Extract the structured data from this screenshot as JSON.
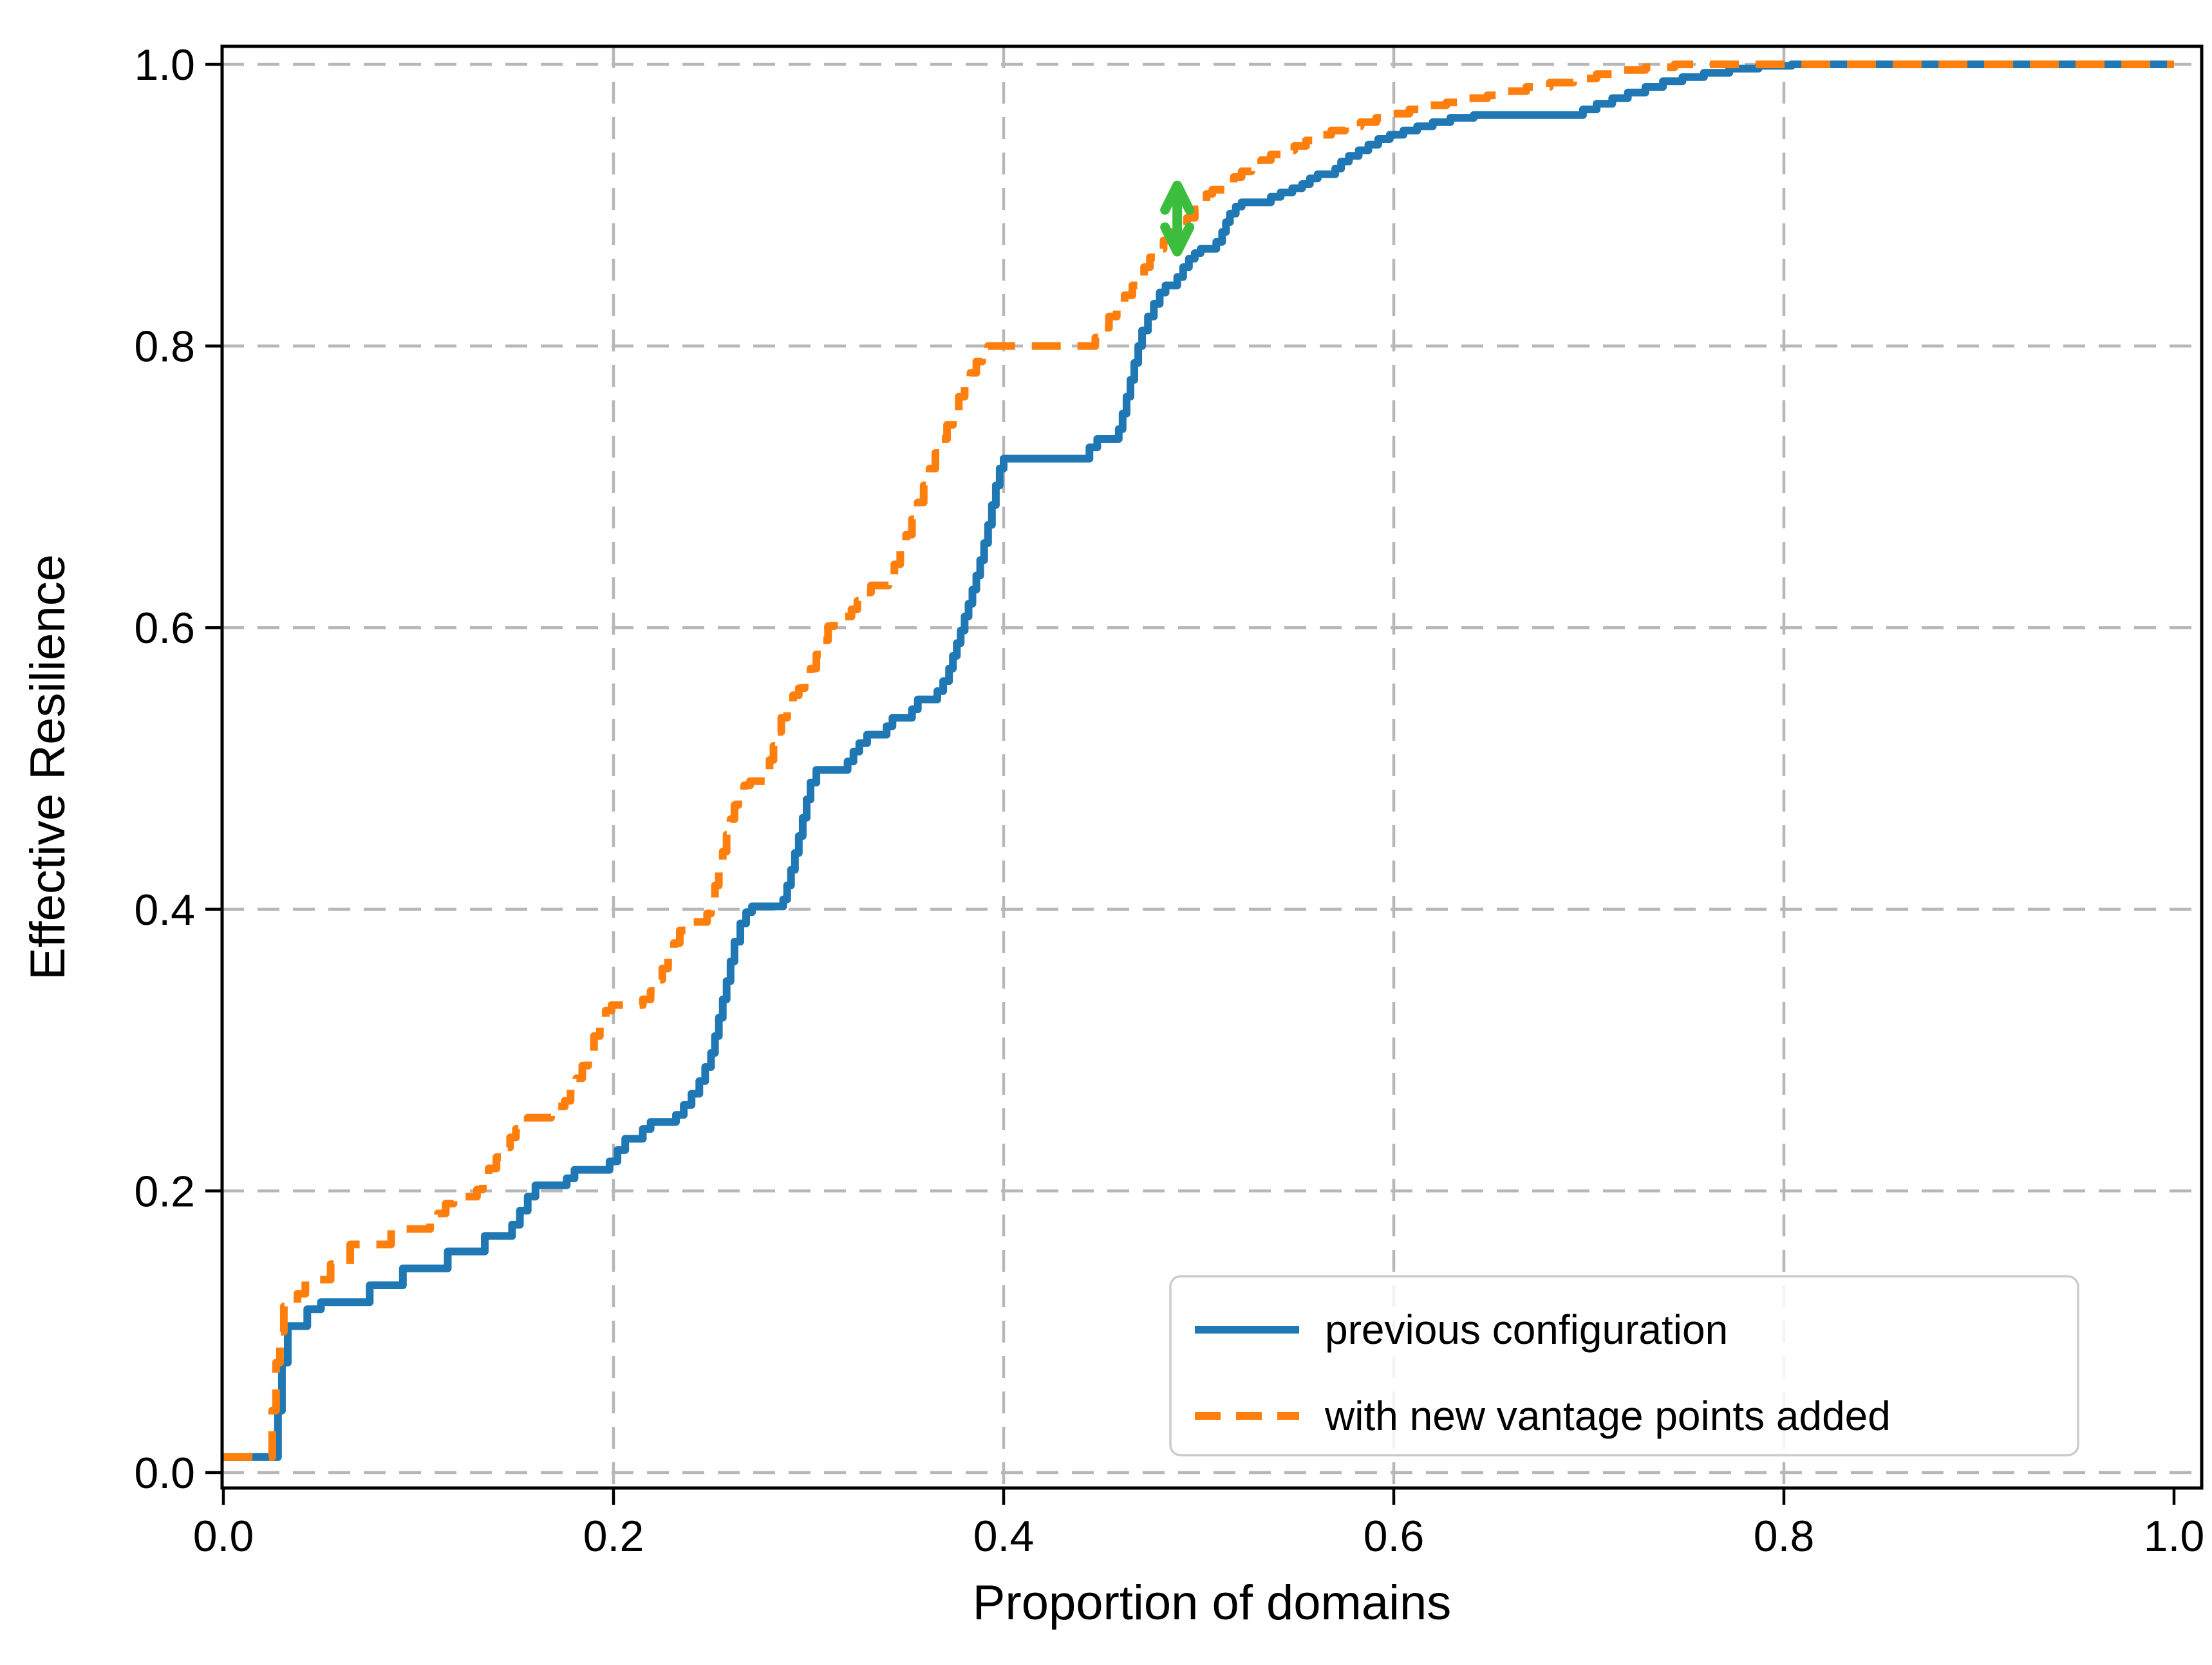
{
  "chart_data": {
    "type": "line",
    "title": "",
    "xlabel": "Proportion of domains",
    "ylabel": "Effective Resilience",
    "xlim": [
      0.0,
      1.0
    ],
    "ylim": [
      0.0,
      1.0
    ],
    "grid": true,
    "grid_style": "dashed",
    "grid_color": "#b7b7b7",
    "xticks": {
      "values": [
        0.0,
        0.2,
        0.4,
        0.6,
        0.8,
        1.0
      ],
      "labels": [
        "0.0",
        "0.2",
        "0.4",
        "0.6",
        "0.8",
        "1.0"
      ]
    },
    "yticks": {
      "values": [
        0.0,
        0.2,
        0.4,
        0.6,
        0.8,
        1.0
      ],
      "labels": [
        "0.0",
        "0.2",
        "0.4",
        "0.6",
        "0.8",
        "1.0"
      ]
    },
    "legend": {
      "position": "lower right",
      "items": [
        {
          "label": "previous configuration",
          "color": "#1f77b4",
          "dash": "solid"
        },
        {
          "label": "with new vantage points added",
          "color": "#ff7f0e",
          "dash": "dashed"
        }
      ]
    },
    "annotations": [
      {
        "type": "double-arrow",
        "color": "#3dbd3d",
        "x": 0.489,
        "y_from": 0.867,
        "y_to": 0.914
      }
    ],
    "series": [
      {
        "name": "previous configuration",
        "color": "#1f77b4",
        "style": "solid",
        "step": "post",
        "points": [
          [
            0,
            0.011
          ],
          [
            0.028,
            0.044
          ],
          [
            0.03,
            0.078
          ],
          [
            0.033,
            0.104
          ],
          [
            0.043,
            0.116
          ],
          [
            0.05,
            0.121
          ],
          [
            0.075,
            0.133
          ],
          [
            0.092,
            0.145
          ],
          [
            0.115,
            0.157
          ],
          [
            0.134,
            0.168
          ],
          [
            0.148,
            0.176
          ],
          [
            0.152,
            0.186
          ],
          [
            0.156,
            0.196
          ],
          [
            0.16,
            0.204
          ],
          [
            0.176,
            0.209
          ],
          [
            0.18,
            0.215
          ],
          [
            0.198,
            0.221
          ],
          [
            0.202,
            0.229
          ],
          [
            0.206,
            0.237
          ],
          [
            0.215,
            0.244
          ],
          [
            0.219,
            0.249
          ],
          [
            0.232,
            0.254
          ],
          [
            0.236,
            0.261
          ],
          [
            0.24,
            0.269
          ],
          [
            0.244,
            0.278
          ],
          [
            0.247,
            0.288
          ],
          [
            0.25,
            0.298
          ],
          [
            0.252,
            0.31
          ],
          [
            0.254,
            0.323
          ],
          [
            0.256,
            0.336
          ],
          [
            0.258,
            0.349
          ],
          [
            0.26,
            0.363
          ],
          [
            0.262,
            0.377
          ],
          [
            0.265,
            0.39
          ],
          [
            0.268,
            0.398
          ],
          [
            0.271,
            0.402
          ],
          [
            0.287,
            0.407
          ],
          [
            0.289,
            0.417
          ],
          [
            0.291,
            0.428
          ],
          [
            0.293,
            0.44
          ],
          [
            0.295,
            0.452
          ],
          [
            0.297,
            0.465
          ],
          [
            0.299,
            0.478
          ],
          [
            0.301,
            0.49
          ],
          [
            0.304,
            0.499
          ],
          [
            0.32,
            0.505
          ],
          [
            0.323,
            0.512
          ],
          [
            0.326,
            0.518
          ],
          [
            0.33,
            0.524
          ],
          [
            0.34,
            0.53
          ],
          [
            0.343,
            0.536
          ],
          [
            0.353,
            0.542
          ],
          [
            0.356,
            0.549
          ],
          [
            0.366,
            0.555
          ],
          [
            0.369,
            0.562
          ],
          [
            0.372,
            0.571
          ],
          [
            0.374,
            0.58
          ],
          [
            0.376,
            0.589
          ],
          [
            0.378,
            0.598
          ],
          [
            0.38,
            0.608
          ],
          [
            0.382,
            0.617
          ],
          [
            0.384,
            0.627
          ],
          [
            0.386,
            0.637
          ],
          [
            0.388,
            0.648
          ],
          [
            0.39,
            0.66
          ],
          [
            0.392,
            0.673
          ],
          [
            0.394,
            0.687
          ],
          [
            0.396,
            0.701
          ],
          [
            0.398,
            0.713
          ],
          [
            0.4,
            0.72
          ],
          [
            0.444,
            0.728
          ],
          [
            0.448,
            0.734
          ],
          [
            0.459,
            0.741
          ],
          [
            0.461,
            0.752
          ],
          [
            0.463,
            0.764
          ],
          [
            0.465,
            0.776
          ],
          [
            0.467,
            0.788
          ],
          [
            0.469,
            0.8
          ],
          [
            0.471,
            0.811
          ],
          [
            0.474,
            0.821
          ],
          [
            0.477,
            0.83
          ],
          [
            0.48,
            0.838
          ],
          [
            0.483,
            0.843
          ],
          [
            0.489,
            0.849
          ],
          [
            0.492,
            0.856
          ],
          [
            0.495,
            0.862
          ],
          [
            0.498,
            0.866
          ],
          [
            0.501,
            0.869
          ],
          [
            0.509,
            0.874
          ],
          [
            0.512,
            0.881
          ],
          [
            0.514,
            0.888
          ],
          [
            0.516,
            0.894
          ],
          [
            0.519,
            0.899
          ],
          [
            0.522,
            0.902
          ],
          [
            0.537,
            0.906
          ],
          [
            0.542,
            0.909
          ],
          [
            0.548,
            0.912
          ],
          [
            0.553,
            0.915
          ],
          [
            0.557,
            0.919
          ],
          [
            0.561,
            0.922
          ],
          [
            0.57,
            0.926
          ],
          [
            0.573,
            0.931
          ],
          [
            0.577,
            0.935
          ],
          [
            0.582,
            0.939
          ],
          [
            0.587,
            0.943
          ],
          [
            0.592,
            0.947
          ],
          [
            0.598,
            0.95
          ],
          [
            0.605,
            0.953
          ],
          [
            0.612,
            0.956
          ],
          [
            0.62,
            0.959
          ],
          [
            0.629,
            0.962
          ],
          [
            0.641,
            0.964
          ],
          [
            0.697,
            0.968
          ],
          [
            0.704,
            0.972
          ],
          [
            0.712,
            0.976
          ],
          [
            0.72,
            0.98
          ],
          [
            0.729,
            0.984
          ],
          [
            0.738,
            0.988
          ],
          [
            0.748,
            0.991
          ],
          [
            0.759,
            0.994
          ],
          [
            0.772,
            0.997
          ],
          [
            0.787,
            0.999
          ],
          [
            0.804,
            1
          ],
          [
            1,
            1
          ]
        ]
      },
      {
        "name": "with new vantage points added",
        "color": "#ff7f0e",
        "style": "dashed",
        "step": "post",
        "points": [
          [
            0,
            0.011
          ],
          [
            0.025,
            0.044
          ],
          [
            0.027,
            0.078
          ],
          [
            0.029,
            0.1
          ],
          [
            0.031,
            0.118
          ],
          [
            0.038,
            0.127
          ],
          [
            0.042,
            0.137
          ],
          [
            0.055,
            0.148
          ],
          [
            0.065,
            0.162
          ],
          [
            0.086,
            0.173
          ],
          [
            0.106,
            0.178
          ],
          [
            0.11,
            0.184
          ],
          [
            0.114,
            0.191
          ],
          [
            0.118,
            0.196
          ],
          [
            0.13,
            0.201
          ],
          [
            0.133,
            0.209
          ],
          [
            0.136,
            0.216
          ],
          [
            0.14,
            0.224
          ],
          [
            0.143,
            0.231
          ],
          [
            0.147,
            0.238
          ],
          [
            0.15,
            0.244
          ],
          [
            0.153,
            0.249
          ],
          [
            0.156,
            0.252
          ],
          [
            0.168,
            0.256
          ],
          [
            0.171,
            0.26
          ],
          [
            0.175,
            0.264
          ],
          [
            0.178,
            0.272
          ],
          [
            0.181,
            0.28
          ],
          [
            0.184,
            0.289
          ],
          [
            0.187,
            0.299
          ],
          [
            0.19,
            0.31
          ],
          [
            0.193,
            0.32
          ],
          [
            0.196,
            0.328
          ],
          [
            0.199,
            0.332
          ],
          [
            0.215,
            0.336
          ],
          [
            0.219,
            0.342
          ],
          [
            0.222,
            0.35
          ],
          [
            0.225,
            0.358
          ],
          [
            0.228,
            0.367
          ],
          [
            0.231,
            0.376
          ],
          [
            0.234,
            0.385
          ],
          [
            0.237,
            0.391
          ],
          [
            0.248,
            0.397
          ],
          [
            0.25,
            0.406
          ],
          [
            0.252,
            0.417
          ],
          [
            0.254,
            0.429
          ],
          [
            0.256,
            0.441
          ],
          [
            0.258,
            0.453
          ],
          [
            0.26,
            0.464
          ],
          [
            0.262,
            0.474
          ],
          [
            0.264,
            0.482
          ],
          [
            0.267,
            0.488
          ],
          [
            0.27,
            0.491
          ],
          [
            0.278,
            0.496
          ],
          [
            0.28,
            0.506
          ],
          [
            0.282,
            0.516
          ],
          [
            0.284,
            0.526
          ],
          [
            0.286,
            0.536
          ],
          [
            0.289,
            0.545
          ],
          [
            0.292,
            0.552
          ],
          [
            0.295,
            0.557
          ],
          [
            0.298,
            0.563
          ],
          [
            0.301,
            0.571
          ],
          [
            0.304,
            0.581
          ],
          [
            0.307,
            0.591
          ],
          [
            0.31,
            0.601
          ],
          [
            0.313,
            0.608
          ],
          [
            0.322,
            0.613
          ],
          [
            0.325,
            0.619
          ],
          [
            0.328,
            0.625
          ],
          [
            0.332,
            0.63
          ],
          [
            0.341,
            0.636
          ],
          [
            0.344,
            0.645
          ],
          [
            0.347,
            0.655
          ],
          [
            0.35,
            0.666
          ],
          [
            0.353,
            0.677
          ],
          [
            0.356,
            0.689
          ],
          [
            0.359,
            0.701
          ],
          [
            0.362,
            0.713
          ],
          [
            0.365,
            0.724
          ],
          [
            0.368,
            0.734
          ],
          [
            0.371,
            0.744
          ],
          [
            0.374,
            0.754
          ],
          [
            0.377,
            0.764
          ],
          [
            0.38,
            0.773
          ],
          [
            0.383,
            0.781
          ],
          [
            0.386,
            0.789
          ],
          [
            0.389,
            0.796
          ],
          [
            0.392,
            0.8
          ],
          [
            0.447,
            0.806
          ],
          [
            0.45,
            0.813
          ],
          [
            0.454,
            0.821
          ],
          [
            0.458,
            0.829
          ],
          [
            0.462,
            0.836
          ],
          [
            0.466,
            0.843
          ],
          [
            0.469,
            0.849
          ],
          [
            0.472,
            0.856
          ],
          [
            0.475,
            0.863
          ],
          [
            0.479,
            0.869
          ],
          [
            0.482,
            0.875
          ],
          [
            0.486,
            0.881
          ],
          [
            0.49,
            0.886
          ],
          [
            0.494,
            0.891
          ],
          [
            0.498,
            0.897
          ],
          [
            0.501,
            0.903
          ],
          [
            0.504,
            0.908
          ],
          [
            0.507,
            0.911
          ],
          [
            0.515,
            0.915
          ],
          [
            0.518,
            0.92
          ],
          [
            0.522,
            0.924
          ],
          [
            0.527,
            0.928
          ],
          [
            0.532,
            0.932
          ],
          [
            0.537,
            0.936
          ],
          [
            0.543,
            0.939
          ],
          [
            0.549,
            0.942
          ],
          [
            0.555,
            0.946
          ],
          [
            0.561,
            0.95
          ],
          [
            0.568,
            0.953
          ],
          [
            0.575,
            0.956
          ],
          [
            0.583,
            0.959
          ],
          [
            0.591,
            0.962
          ],
          [
            0.599,
            0.965
          ],
          [
            0.608,
            0.968
          ],
          [
            0.617,
            0.971
          ],
          [
            0.627,
            0.973
          ],
          [
            0.638,
            0.976
          ],
          [
            0.648,
            0.978
          ],
          [
            0.658,
            0.981
          ],
          [
            0.668,
            0.984
          ],
          [
            0.68,
            0.987
          ],
          [
            0.692,
            0.99
          ],
          [
            0.704,
            0.993
          ],
          [
            0.716,
            0.996
          ],
          [
            0.729,
            0.998
          ],
          [
            0.744,
            1
          ],
          [
            1,
            1
          ]
        ]
      }
    ]
  }
}
